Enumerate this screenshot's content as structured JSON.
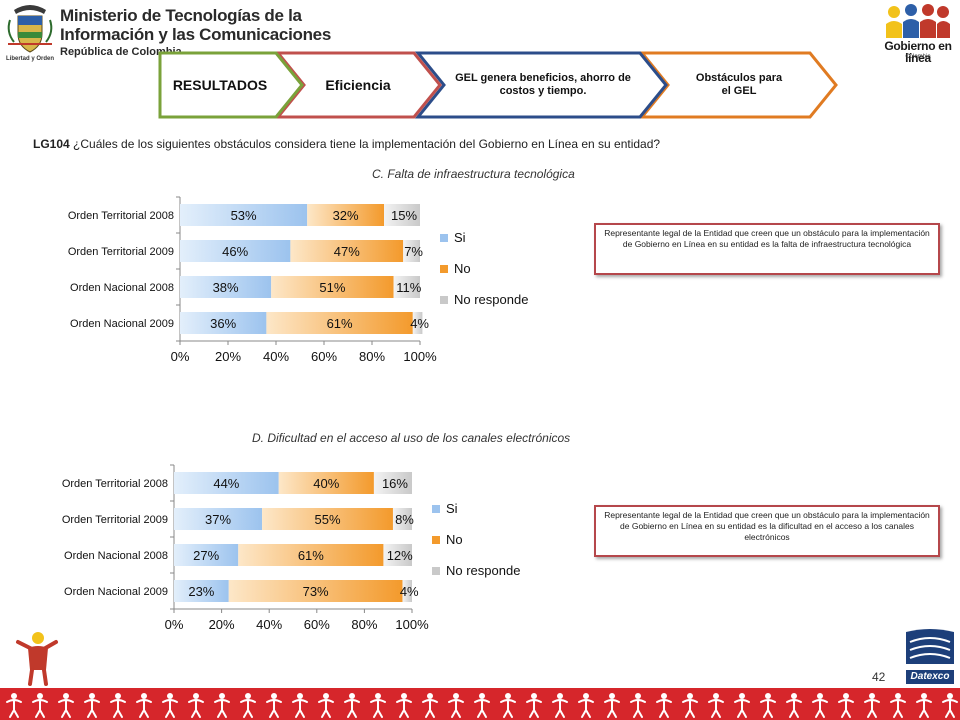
{
  "header": {
    "ministry_line1": "Ministerio de Tecnologías de la",
    "ministry_line2": "Información y las Comunicaciones",
    "ministry_line3": "República de Colombia",
    "motto": "Libertad y Orden",
    "gel_title": "Gobierno en línea",
    "gel_subtitle": "Colombia"
  },
  "ribbon": {
    "step1": "RESULTADOS",
    "step2": "Eficiencia",
    "step3": "GEL genera beneficios, ahorro de costos y tiempo.",
    "step4": "Obstáculos para el GEL",
    "colors": {
      "step1": "#7aa23a",
      "step2": "#c0504d",
      "step3": "#2c4d8a",
      "step4": "#e07b22"
    }
  },
  "question": {
    "code": "LG104",
    "text": "¿Cuáles de los siguientes obstáculos considera tiene la implementación del Gobierno en Línea   en su entidad?"
  },
  "notes": {
    "note_c": "Representante legal de la Entidad que creen que un obstáculo para la implementación de Gobierno en Línea en su entidad es la falta de infraestructura tecnológica",
    "note_d": "Representante legal de la Entidad que creen que un obstáculo para la implementación de Gobierno en Línea en su entidad es la dificultad en el acceso a los canales electrónicos"
  },
  "footer": {
    "page_number": "42",
    "brand": "Datexco"
  },
  "colors": {
    "si": "#9cc3ee",
    "no": "#f39a2c",
    "nr": "#c9c9c9",
    "note_border": "#b5474b"
  },
  "chart_data": [
    {
      "type": "bar",
      "stacked": true,
      "orientation": "horizontal",
      "title": "C. Falta de infraestructura tecnológica",
      "categories": [
        "Orden Territorial 2008",
        "Orden Territorial 2009",
        "Orden Nacional 2008",
        "Orden Nacional 2009"
      ],
      "series": [
        {
          "name": "Si",
          "values": [
            53,
            46,
            38,
            36
          ],
          "labels": [
            "53%",
            "46%",
            "38%",
            "36%"
          ]
        },
        {
          "name": "No",
          "values": [
            32,
            47,
            51,
            61
          ],
          "labels": [
            "32%",
            "47%",
            "51%",
            "61%"
          ]
        },
        {
          "name": "No responde",
          "values": [
            15,
            7,
            11,
            4
          ],
          "labels": [
            "15%",
            "7%",
            "11%",
            "4%"
          ]
        }
      ],
      "x_ticks": [
        "0%",
        "20%",
        "40%",
        "60%",
        "80%",
        "100%"
      ],
      "xlim": [
        0,
        100
      ],
      "legend": "right"
    },
    {
      "type": "bar",
      "stacked": true,
      "orientation": "horizontal",
      "title": "D. Dificultad en el acceso al uso de los canales electrónicos",
      "categories": [
        "Orden Territorial 2008",
        "Orden Territorial 2009",
        "Orden Nacional 2008",
        "Orden Nacional 2009"
      ],
      "series": [
        {
          "name": "Si",
          "values": [
            44,
            37,
            27,
            23
          ],
          "labels": [
            "44%",
            "37%",
            "27%",
            "23%"
          ]
        },
        {
          "name": "No",
          "values": [
            40,
            55,
            61,
            73
          ],
          "labels": [
            "40%",
            "55%",
            "61%",
            "73%"
          ]
        },
        {
          "name": "No responde",
          "values": [
            16,
            8,
            12,
            4
          ],
          "labels": [
            "16%",
            "8%",
            "12%",
            "4%"
          ]
        }
      ],
      "x_ticks": [
        "0%",
        "20%",
        "40%",
        "60%",
        "80%",
        "100%"
      ],
      "xlim": [
        0,
        100
      ],
      "legend": "right"
    }
  ]
}
